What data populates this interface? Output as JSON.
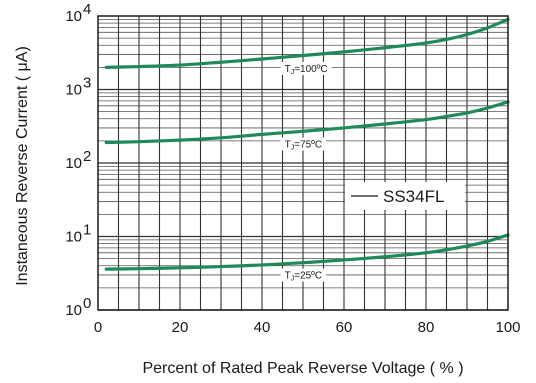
{
  "chart_data": {
    "type": "line",
    "title": "",
    "xlabel": "Percent of Rated Peak Reverse Voltage ( % )",
    "ylabel": "Instaneous Reverse Current ( μA)",
    "xlim": [
      0,
      100
    ],
    "ylim": [
      1,
      10000
    ],
    "yscale": "log",
    "grid": true,
    "x_ticks": [
      "0",
      "20",
      "40",
      "60",
      "80",
      "100"
    ],
    "y_ticks": [
      {
        "value": 1,
        "base": "10",
        "exp": "0"
      },
      {
        "value": 10,
        "base": "10",
        "exp": "1"
      },
      {
        "value": 100,
        "base": "10",
        "exp": "2"
      },
      {
        "value": 1000,
        "base": "10",
        "exp": "3"
      },
      {
        "value": 10000,
        "base": "10",
        "exp": "4"
      }
    ],
    "legend": {
      "text": "SS34FL",
      "placement": "center-right"
    },
    "line_color": "#1e8a5a",
    "series": [
      {
        "label_main": "T",
        "label_sub": "J",
        "label_rest": "=100ºC",
        "label_at_x": 46,
        "x": [
          2,
          10,
          20,
          30,
          40,
          50,
          60,
          70,
          80,
          85,
          90,
          95,
          100
        ],
        "y": [
          2000,
          2050,
          2150,
          2350,
          2600,
          2900,
          3250,
          3700,
          4300,
          4800,
          5600,
          6900,
          9000
        ]
      },
      {
        "label_main": "T",
        "label_sub": "J",
        "label_rest": "=75ºC",
        "label_at_x": 46,
        "x": [
          2,
          10,
          20,
          30,
          40,
          50,
          60,
          70,
          80,
          85,
          90,
          95,
          100
        ],
        "y": [
          190,
          195,
          205,
          220,
          245,
          270,
          300,
          340,
          390,
          430,
          480,
          560,
          680
        ]
      },
      {
        "label_main": "T",
        "label_sub": "J",
        "label_rest": "=25ºC",
        "label_at_x": 46,
        "x": [
          2,
          10,
          20,
          30,
          40,
          50,
          60,
          70,
          80,
          85,
          90,
          95,
          100
        ],
        "y": [
          3.6,
          3.65,
          3.75,
          3.9,
          4.1,
          4.4,
          4.8,
          5.3,
          6.0,
          6.6,
          7.4,
          8.6,
          10.5
        ]
      }
    ]
  }
}
